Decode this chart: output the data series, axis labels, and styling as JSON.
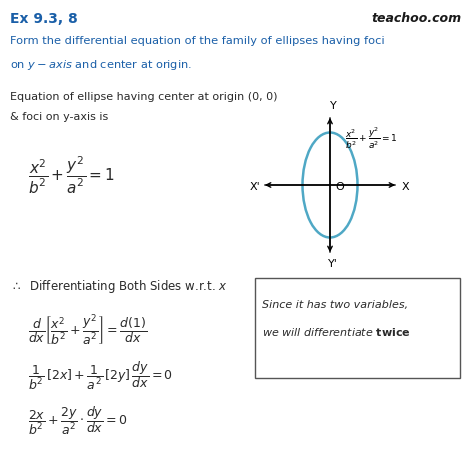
{
  "bg_color": "#ffffff",
  "title_text": "Ex 9.3, 8",
  "brand_text": "teachoo.com",
  "question_line1": "Form the differential equation of the family of ellipses having foci",
  "question_line2": "on $y - axis$ and center at origin.",
  "eq_intro_line1": "Equation of ellipse having center at origin (0, 0)",
  "eq_intro_line2": "& foci on y-axis is",
  "main_eq": "$\\dfrac{x^2}{b^2} + \\dfrac{y^2}{a^2} = 1$",
  "therefore_text": "$\\therefore$  Differentiating Both Sides w.r.t. $x$",
  "diff_eq1": "$\\dfrac{d}{dx}\\left[\\dfrac{x^2}{b^2} + \\dfrac{y^2}{a^2}\\right] = \\dfrac{d(1)}{dx}$",
  "diff_eq2": "$\\dfrac{1}{b^2}\\,[2x] + \\dfrac{1}{a^2}\\,[2y]\\,\\dfrac{dy}{dx} = 0$",
  "diff_eq3": "$\\dfrac{2x}{b^2} + \\dfrac{2y}{a^2} \\cdot \\dfrac{dy}{dx} = 0$",
  "graph_eq": "$\\dfrac{x^2}{b^2} + \\dfrac{y^2}{a^2} = 1$",
  "box_line1": "Since it has two variables,",
  "box_line2": "we will differentiate $\\mathbf{twice}$",
  "ellipse_color": "#4fa8c5",
  "title_color": "#1a5fa8",
  "question_color": "#1a5fa8",
  "text_color": "#2a2a2a",
  "graph_text_color": "#000000"
}
